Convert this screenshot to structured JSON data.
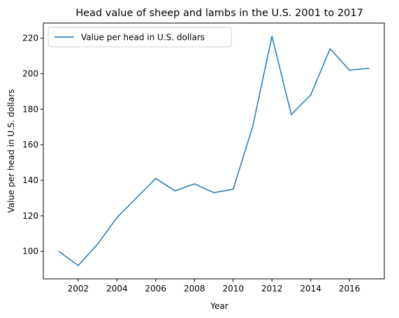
{
  "chart_data": {
    "type": "line",
    "title": "Head value of sheep and lambs in the U.S. 2001 to 2017",
    "xlabel": "Year",
    "ylabel": "Value per head in U.S. dollars",
    "xlim": [
      2000.2,
      2017.8
    ],
    "ylim": [
      84.5,
      228.5
    ],
    "xticks": [
      2002,
      2004,
      2006,
      2008,
      2010,
      2012,
      2014,
      2016
    ],
    "yticks": [
      100,
      120,
      140,
      160,
      180,
      200,
      220
    ],
    "grid": false,
    "legend": "upper-left",
    "x": [
      2001,
      2002,
      2003,
      2004,
      2005,
      2006,
      2007,
      2008,
      2009,
      2010,
      2011,
      2012,
      2013,
      2014,
      2015,
      2016,
      2017
    ],
    "series": [
      {
        "name": "Value per head in U.S. dollars",
        "color": "#1f77b4",
        "values": [
          100,
          92,
          104,
          119,
          130,
          141,
          134,
          138,
          133,
          135,
          170,
          221,
          177,
          188,
          214,
          202,
          203
        ]
      }
    ]
  }
}
